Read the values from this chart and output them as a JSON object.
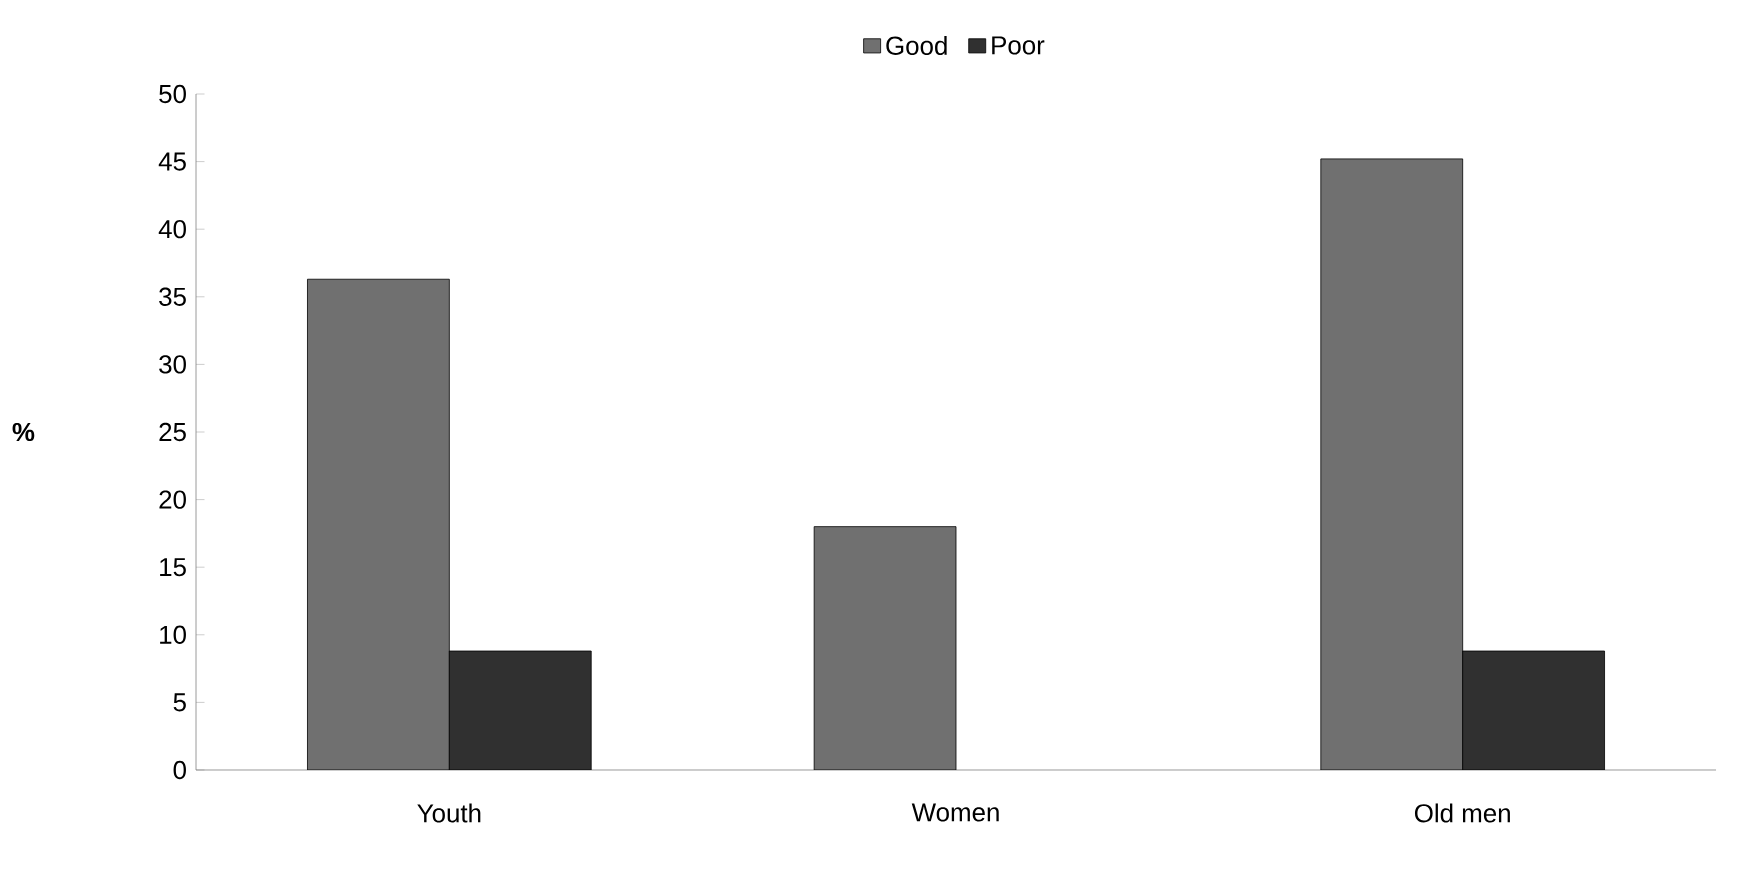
{
  "chart_data": {
    "type": "bar",
    "ylabel": "%",
    "categories": [
      "Youth",
      "Women",
      "Old men"
    ],
    "series": [
      {
        "name": "Good",
        "color": "#707070",
        "values": [
          36.3,
          18,
          45.2
        ]
      },
      {
        "name": "Poor",
        "color": "#303030",
        "values": [
          8.8,
          null,
          8.8
        ]
      }
    ],
    "ylim": [
      0,
      50
    ],
    "yticks": [
      0,
      5,
      10,
      15,
      20,
      25,
      30,
      35,
      40,
      45,
      50
    ],
    "grid": false,
    "legend": "top"
  }
}
